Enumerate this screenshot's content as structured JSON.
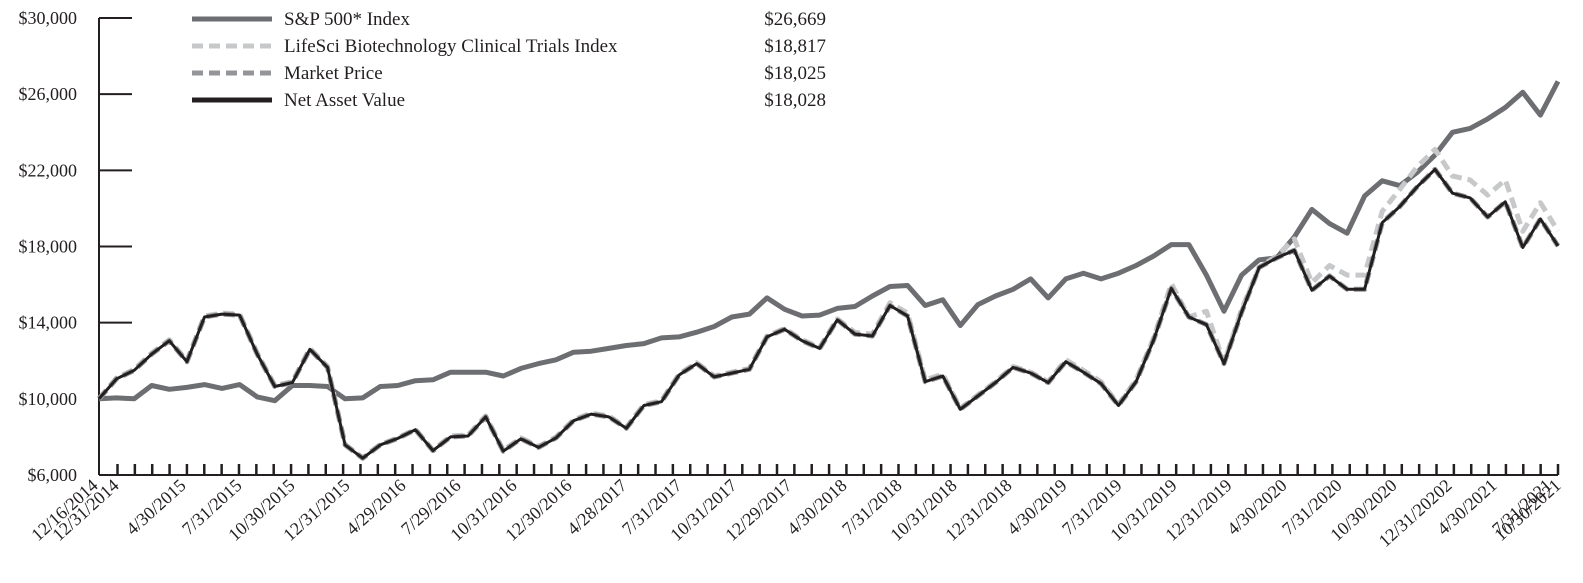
{
  "chart_data": {
    "type": "line",
    "title": "",
    "xlabel": "",
    "ylabel": "",
    "ylim": [
      6000,
      30000
    ],
    "y_ticks": [
      6000,
      10000,
      14000,
      18000,
      22000,
      26000,
      30000
    ],
    "y_tick_labels": [
      "$6,000",
      "$10,000",
      "$14,000",
      "$18,000",
      "$22,000",
      "$26,000",
      "$30,000"
    ],
    "x_tick_labels": [
      "12/16/2014",
      "12/31/2014",
      "4/30/2015",
      "7/31/2015",
      "10/30/2015",
      "12/31/2015",
      "4/29/2016",
      "7/29/2016",
      "10/31/2016",
      "12/30/2016",
      "4/28/2017",
      "7/31/2017",
      "10/31/2017",
      "12/29/2017",
      "4/30/2018",
      "7/31/2018",
      "10/31/2018",
      "12/31/2018",
      "4/30/2019",
      "7/31/2019",
      "10/31/2019",
      "12/31/2019",
      "4/30/2020",
      "7/31/2020",
      "10/30/2020",
      "12/31/20202",
      "4/30/2021",
      "7/31/2021",
      "10/30/2021"
    ],
    "grid": false,
    "legend_position": "top-left",
    "series": [
      {
        "name": "S&P 500* Index",
        "ending_value": "$26,669",
        "color": "#6d6e71",
        "style": "solid",
        "values": [
          10000,
          10050,
          10000,
          10700,
          10500,
          10600,
          10750,
          10550,
          10750,
          10100,
          9900,
          10700,
          10700,
          10650,
          10000,
          10050,
          10650,
          10700,
          10950,
          11000,
          11400,
          11400,
          11400,
          11200,
          11600,
          11850,
          12050,
          12450,
          12500,
          12650,
          12800,
          12900,
          13200,
          13250,
          13500,
          13800,
          14300,
          14450,
          15300,
          14700,
          14350,
          14400,
          14750,
          14850,
          15400,
          15900,
          15950,
          14900,
          15200,
          13850,
          14950,
          15400,
          15750,
          16300,
          15300,
          16300,
          16600,
          16300,
          16600,
          17000,
          17500,
          18100,
          18100,
          16500,
          14600,
          16500,
          17300,
          17400,
          18500,
          19950,
          19200,
          18700,
          20650,
          21450,
          21200,
          21900,
          22800,
          24000,
          24200,
          24700,
          25300,
          26100,
          24900,
          26669
        ]
      },
      {
        "name": "LifeSci Biotechnology Clinical Trials Index",
        "ending_value": "$18,817",
        "color": "#c7c8ca",
        "style": "dashed",
        "values": [
          10000,
          11100,
          11550,
          12400,
          13100,
          12000,
          14350,
          14500,
          14450,
          12400,
          10700,
          10900,
          12650,
          11700,
          7600,
          6900,
          7600,
          7950,
          8400,
          7300,
          8050,
          8100,
          9100,
          7300,
          7950,
          7500,
          8000,
          8900,
          9250,
          9100,
          8500,
          9700,
          9900,
          11300,
          11900,
          11200,
          11400,
          11600,
          13300,
          13700,
          13100,
          12700,
          14200,
          13500,
          13400,
          15050,
          14500,
          11000,
          11300,
          9500,
          10200,
          10900,
          11700,
          11400,
          10900,
          12050,
          11500,
          10900,
          9700,
          11000,
          13200,
          16050,
          14300,
          14600,
          11900,
          14700,
          16900,
          17500,
          18400,
          16100,
          17000,
          16500,
          16500,
          19850,
          21000,
          22200,
          23100,
          21700,
          21500,
          20700,
          21500,
          18800,
          20300,
          18817
        ]
      },
      {
        "name": "Market Price",
        "ending_value": "$18,025",
        "color": "#939598",
        "style": "dashed",
        "values": [
          10000,
          11050,
          11500,
          12350,
          13050,
          11950,
          14300,
          14450,
          14400,
          12350,
          10650,
          10850,
          12600,
          11650,
          7580,
          6880,
          7580,
          7920,
          8380,
          7280,
          8000,
          8050,
          9050,
          7250,
          7900,
          7450,
          7950,
          8850,
          9200,
          9050,
          8450,
          9650,
          9850,
          11250,
          11850,
          11150,
          11350,
          11550,
          13250,
          13650,
          13050,
          12650,
          14150,
          13400,
          13300,
          14900,
          14350,
          10900,
          11200,
          9450,
          10150,
          10850,
          11650,
          11350,
          10850,
          11950,
          11400,
          10800,
          9650,
          10900,
          13100,
          15800,
          14300,
          13900,
          11850,
          14550,
          16900,
          17400,
          17800,
          15700,
          16450,
          15750,
          15750,
          19250,
          20100,
          21150,
          22050,
          20800,
          20550,
          19550,
          20350,
          17950,
          19450,
          18025
        ]
      },
      {
        "name": "Net Asset Value",
        "ending_value": "$18,028",
        "color": "#231f20",
        "style": "solid",
        "values": [
          10000,
          11050,
          11500,
          12350,
          13050,
          11950,
          14300,
          14450,
          14400,
          12350,
          10650,
          10850,
          12600,
          11650,
          7580,
          6880,
          7580,
          7920,
          8380,
          7280,
          8000,
          8050,
          9050,
          7250,
          7900,
          7450,
          7950,
          8850,
          9200,
          9050,
          8450,
          9650,
          9850,
          11250,
          11850,
          11150,
          11350,
          11550,
          13250,
          13650,
          13050,
          12650,
          14150,
          13400,
          13300,
          14900,
          14350,
          10900,
          11200,
          9450,
          10150,
          10850,
          11650,
          11350,
          10850,
          11950,
          11400,
          10800,
          9650,
          10900,
          13100,
          15800,
          14300,
          13900,
          11850,
          14550,
          16900,
          17400,
          17800,
          15700,
          16450,
          15750,
          15750,
          19250,
          20100,
          21150,
          22050,
          20800,
          20550,
          19550,
          20350,
          17950,
          19450,
          18028
        ]
      }
    ]
  }
}
